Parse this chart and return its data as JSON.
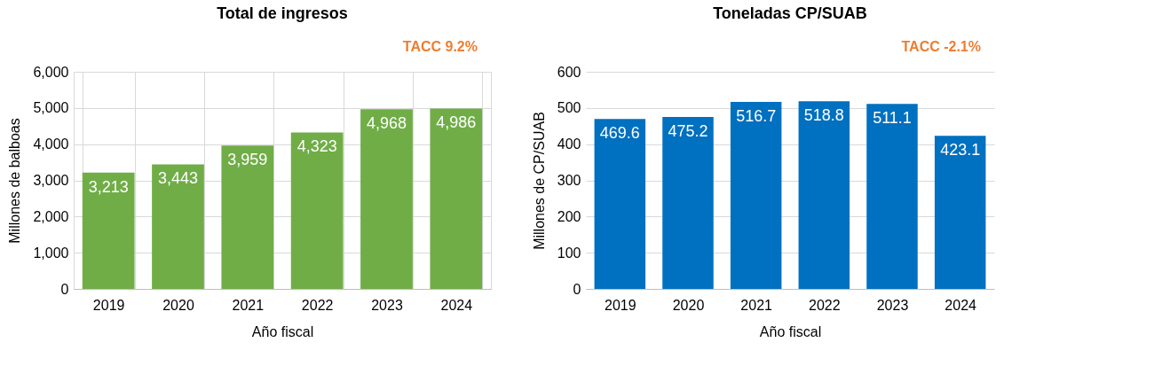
{
  "chart_data": [
    {
      "type": "bar",
      "title": "Total de ingresos",
      "xlabel": "Año fiscal",
      "ylabel": "Millones de balboas",
      "annotations": [
        "TACC 9.2%"
      ],
      "categories": [
        "2019",
        "2020",
        "2021",
        "2022",
        "2023",
        "2024"
      ],
      "values": [
        3213,
        3443,
        3959,
        4323,
        4968,
        4986
      ],
      "value_labels": [
        "3,213",
        "3,443",
        "3,959",
        "4,323",
        "4,968",
        "4,986"
      ],
      "color": "#70ad47",
      "ylim": [
        0,
        6000
      ],
      "yticks": [
        0,
        {
          "value": 1000,
          "label": "1,000"
        },
        {
          "value": 2000,
          "label": "2,000"
        },
        {
          "value": 3000,
          "label": "3,000"
        },
        {
          "value": 4000,
          "label": "4,000"
        },
        {
          "value": 5000,
          "label": "5,000"
        },
        {
          "value": 6000,
          "label": "6,000"
        }
      ],
      "grid": true
    },
    {
      "type": "bar",
      "title": "Toneladas CP/SUAB",
      "xlabel": "Año fiscal",
      "ylabel": "Millones de CP/SUAB",
      "annotations": [
        "TACC -2.1%"
      ],
      "categories": [
        "2019",
        "2020",
        "2021",
        "2022",
        "2023",
        "2024"
      ],
      "values": [
        469.6,
        475.2,
        516.7,
        518.8,
        511.1,
        423.1
      ],
      "data_labels": true,
      "color": "#0070c0",
      "ylim": [
        0,
        600
      ],
      "yticks": [
        0,
        100,
        200,
        300,
        400,
        500,
        600
      ],
      "grid": "y"
    }
  ]
}
